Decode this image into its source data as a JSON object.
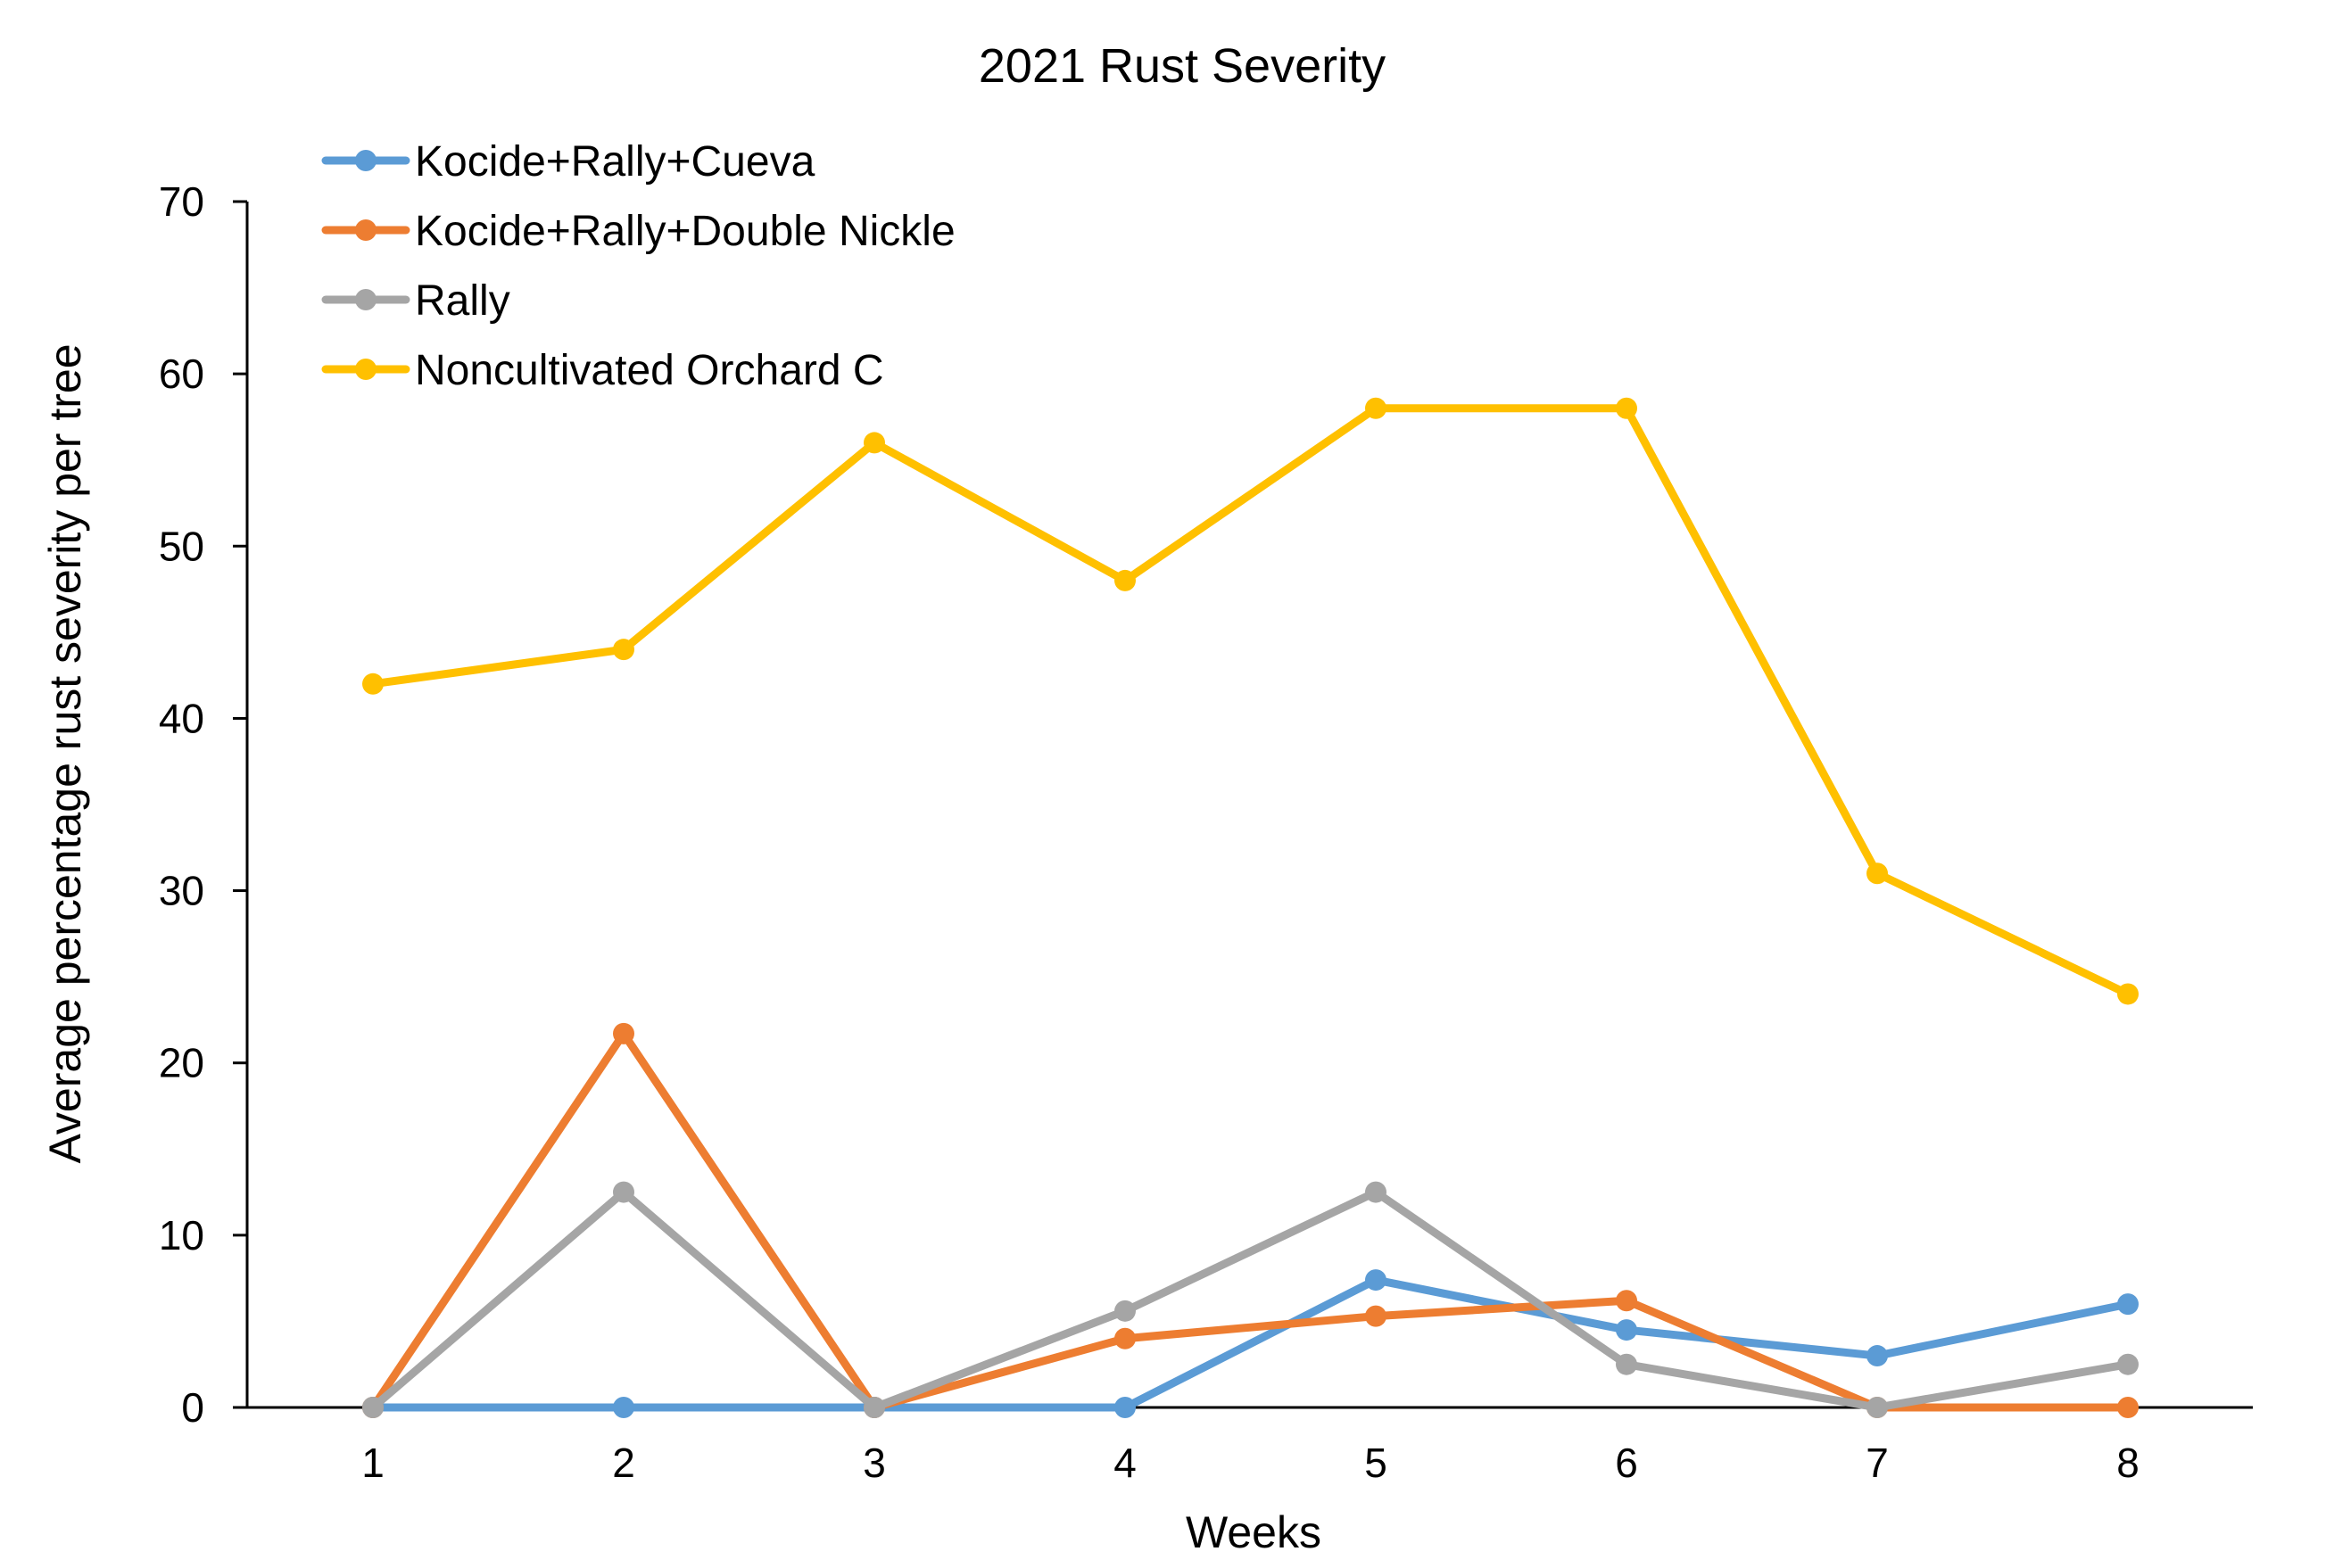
{
  "chart_data": {
    "type": "line",
    "title": "2021 Rust Severity",
    "xlabel": "Weeks",
    "ylabel": "Average percentage rust severity per tree",
    "x": [
      1,
      2,
      3,
      4,
      5,
      6,
      7,
      8
    ],
    "x_tick_labels": [
      "1",
      "2",
      "3",
      "4",
      "5",
      "6",
      "7",
      "8"
    ],
    "ylim": [
      0,
      70
    ],
    "y_ticks": [
      0,
      10,
      20,
      30,
      40,
      50,
      60,
      70
    ],
    "y_tick_labels": [
      "0",
      "10",
      "20",
      "30",
      "40",
      "50",
      "60",
      "70"
    ],
    "grid": false,
    "legend_position": "top-left",
    "series": [
      {
        "name": "Kocide+Rally+Cueva",
        "color": "#5b9bd5",
        "values": [
          0,
          0,
          0,
          0,
          7.4,
          4.5,
          3,
          6
        ]
      },
      {
        "name": "Kocide+Rally+Double Nickle",
        "color": "#ed7d31",
        "values": [
          0,
          21.7,
          0,
          4,
          5.3,
          6.2,
          0,
          0
        ]
      },
      {
        "name": "Rally",
        "color": "#a5a5a5",
        "values": [
          0,
          12.5,
          0,
          5.6,
          12.5,
          2.5,
          0,
          2.5
        ]
      },
      {
        "name": "Noncultivated Orchard C",
        "color": "#ffc000",
        "values": [
          42,
          44,
          56,
          48,
          58,
          58,
          31,
          24
        ]
      }
    ]
  }
}
